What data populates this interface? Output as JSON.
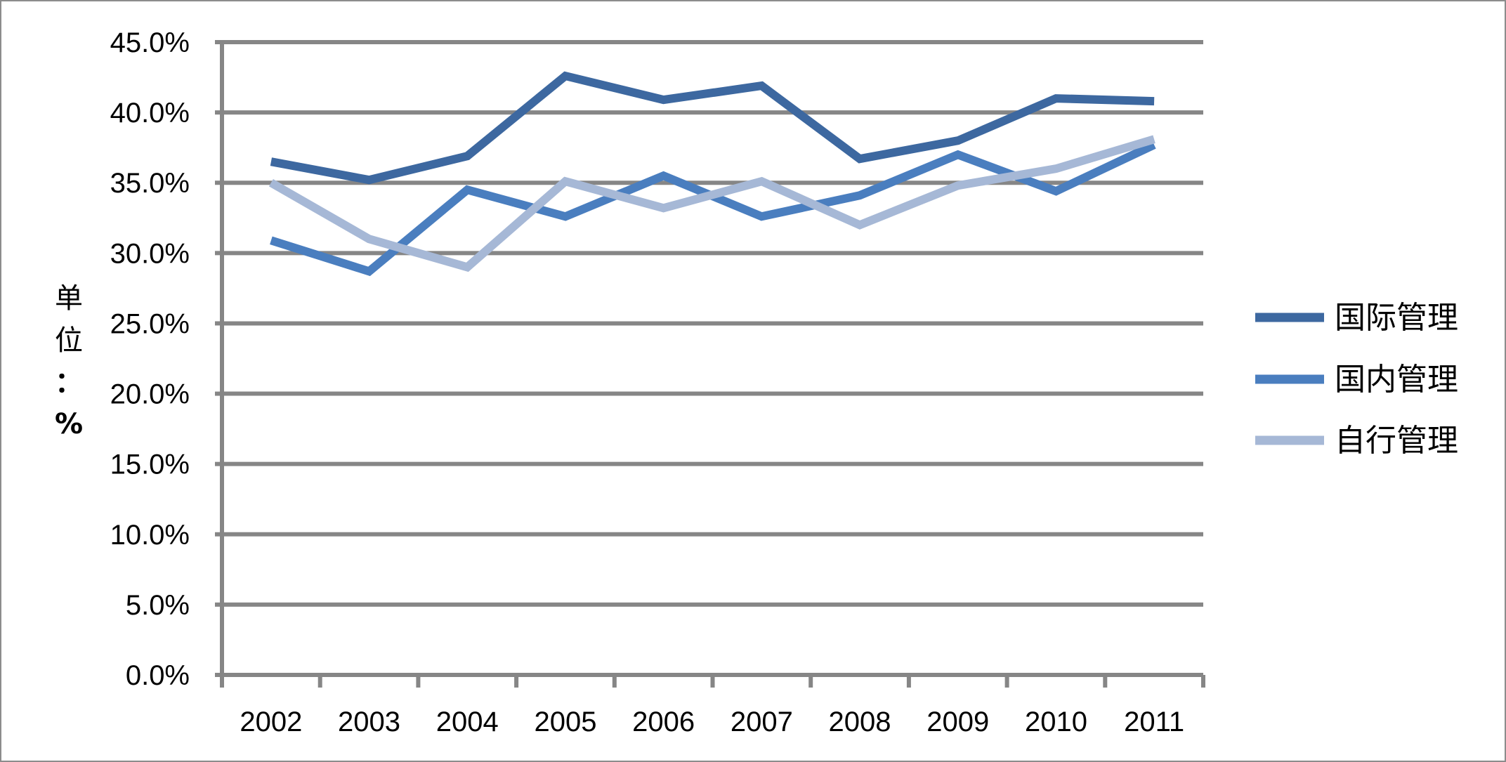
{
  "chart_data": {
    "type": "line",
    "categories": [
      "2002",
      "2003",
      "2004",
      "2005",
      "2006",
      "2007",
      "2008",
      "2009",
      "2010",
      "2011"
    ],
    "series": [
      {
        "name": "国际管理",
        "color": "#3d68a0",
        "values": [
          36.5,
          35.2,
          36.9,
          42.6,
          40.9,
          41.9,
          36.7,
          38.0,
          41.0,
          40.8
        ]
      },
      {
        "name": "国内管理",
        "color": "#4a7ebf",
        "values": [
          30.9,
          28.7,
          34.5,
          32.6,
          35.5,
          32.6,
          34.1,
          37.0,
          34.4,
          37.7
        ]
      },
      {
        "name": "自行管理",
        "color": "#a6b8d6",
        "values": [
          35.0,
          31.0,
          29.0,
          35.1,
          33.2,
          35.1,
          32.0,
          34.8,
          36.0,
          38.1
        ]
      }
    ],
    "yticks": [
      "0.0%",
      "5.0%",
      "10.0%",
      "15.0%",
      "20.0%",
      "25.0%",
      "30.0%",
      "35.0%",
      "40.0%",
      "45.0%"
    ],
    "ylim": [
      0,
      45
    ],
    "ylabel": [
      "单",
      "位",
      "：",
      "%"
    ],
    "xlabel": "",
    "title": "",
    "grid": true,
    "legend_position": "right",
    "gridline_color": "#868686",
    "axis_color": "#868686"
  }
}
